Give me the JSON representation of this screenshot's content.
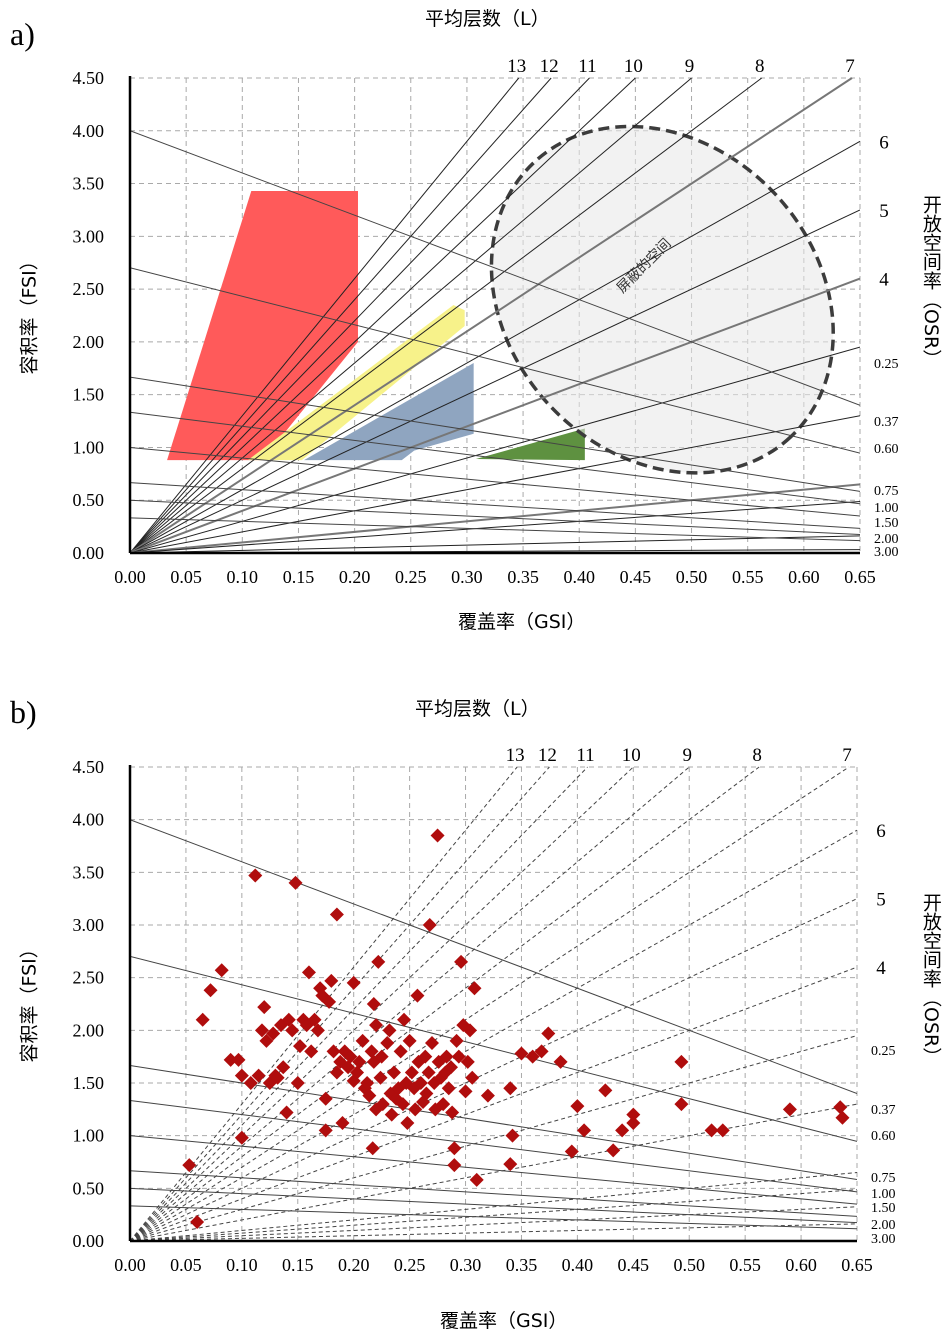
{
  "chart_data": [
    {
      "panel_label": "a)",
      "type": "scatter",
      "top_title": "平均层数（L）",
      "xlabel": "覆盖率（GSI）",
      "ylabel": "容积率（FSI）",
      "right_label": "开放空间率（OSR）",
      "xlim": [
        0,
        0.65
      ],
      "ylim": [
        0,
        4.5
      ],
      "x_ticks": [
        "0.00",
        "0.05",
        "0.10",
        "0.15",
        "0.20",
        "0.25",
        "0.30",
        "0.35",
        "0.40",
        "0.45",
        "0.50",
        "0.55",
        "0.60",
        "0.65"
      ],
      "y_ticks": [
        "0.00",
        "0.50",
        "1.00",
        "1.50",
        "2.00",
        "2.50",
        "3.00",
        "3.50",
        "4.00",
        "4.50"
      ],
      "grid": true,
      "floor_lines": [
        {
          "label": "13",
          "value": 13
        },
        {
          "label": "12",
          "value": 12
        },
        {
          "label": "11",
          "value": 11
        },
        {
          "label": "10",
          "value": 10
        },
        {
          "label": "9",
          "value": 9
        },
        {
          "label": "8",
          "value": 8
        },
        {
          "label": "7",
          "value": 7
        },
        {
          "label": "6",
          "value": 6
        },
        {
          "label": "5",
          "value": 5
        },
        {
          "label": "4",
          "value": 4
        },
        {
          "value": 3
        },
        {
          "value": 2
        },
        {
          "value": 1
        },
        {
          "value": 0.75
        },
        {
          "value": 0.25
        },
        {
          "value": 0.05
        }
      ],
      "osr_lines": [
        {
          "label": "0.25",
          "value": 0.25
        },
        {
          "label": "0.37",
          "value": 0.37
        },
        {
          "label": "0.60",
          "value": 0.6
        },
        {
          "label": "0.75",
          "value": 0.75
        },
        {
          "label": "1.00",
          "value": 1.0
        },
        {
          "label": "1.50",
          "value": 1.5
        },
        {
          "label": "2.00",
          "value": 2.0
        },
        {
          "label": "3.00",
          "value": 3.0
        }
      ],
      "regions": [
        {
          "color": "#ff5a5a",
          "points": [
            [
              0.033,
              0.88
            ],
            [
              0.108,
              3.43
            ],
            [
              0.203,
              3.43
            ],
            [
              0.203,
              2.0
            ],
            [
              0.118,
              0.88
            ]
          ]
        },
        {
          "color": "#f7f28a",
          "points": [
            [
              0.105,
              0.88
            ],
            [
              0.288,
              2.35
            ],
            [
              0.298,
              2.3
            ],
            [
              0.298,
              2.15
            ],
            [
              0.153,
              0.88
            ]
          ]
        },
        {
          "color": "#8fa5c0",
          "points": [
            [
              0.155,
              0.88
            ],
            [
              0.306,
              1.8
            ],
            [
              0.306,
              1.13
            ],
            [
              0.253,
              0.97
            ],
            [
              0.242,
              0.88
            ]
          ]
        },
        {
          "color": "#5e9140",
          "points": [
            [
              0.308,
              0.89
            ],
            [
              0.405,
              1.18
            ],
            [
              0.405,
              0.88
            ]
          ]
        }
      ],
      "ellipse": {
        "cx": 0.474,
        "cy": 2.4,
        "rx_gsi": 0.222,
        "ry_fsi": 0.89,
        "label": "屏蔽的空间"
      }
    },
    {
      "panel_label": "b)",
      "type": "scatter",
      "top_title": "平均层数（L）",
      "xlabel": "覆盖率（GSI）",
      "ylabel": "容积率（FSI）",
      "right_label": "开放空间率（OSR）",
      "xlim": [
        0,
        0.65
      ],
      "ylim": [
        0,
        4.5
      ],
      "x_ticks": [
        "0.00",
        "0.05",
        "0.10",
        "0.15",
        "0.20",
        "0.25",
        "0.30",
        "0.35",
        "0.40",
        "0.45",
        "0.50",
        "0.55",
        "0.60",
        "0.65"
      ],
      "y_ticks": [
        "0.00",
        "0.50",
        "1.00",
        "1.50",
        "2.00",
        "2.50",
        "3.00",
        "3.50",
        "4.00",
        "4.50"
      ],
      "grid": true,
      "floor_lines": [
        {
          "label": "13",
          "value": 13
        },
        {
          "label": "12",
          "value": 12
        },
        {
          "label": "11",
          "value": 11
        },
        {
          "label": "10",
          "value": 10
        },
        {
          "label": "9",
          "value": 9
        },
        {
          "label": "8",
          "value": 8
        },
        {
          "label": "7",
          "value": 7
        },
        {
          "label": "6",
          "value": 6
        },
        {
          "label": "5",
          "value": 5
        },
        {
          "label": "4",
          "value": 4
        },
        {
          "value": 3
        },
        {
          "value": 2
        },
        {
          "value": 1
        },
        {
          "value": 0.75
        },
        {
          "value": 0.5
        },
        {
          "value": 0.25
        }
      ],
      "osr_lines": [
        {
          "label": "0.25",
          "value": 0.25
        },
        {
          "label": "0.37",
          "value": 0.37
        },
        {
          "label": "0.60",
          "value": 0.6
        },
        {
          "label": "0.75",
          "value": 0.75
        },
        {
          "label": "1.00",
          "value": 1.0
        },
        {
          "label": "1.50",
          "value": 1.5
        },
        {
          "label": "2.00",
          "value": 2.0
        },
        {
          "label": "3.00",
          "value": 3.0
        }
      ],
      "marker_color": "#b00d0d",
      "points": [
        [
          0.053,
          0.72
        ],
        [
          0.06,
          0.18
        ],
        [
          0.065,
          2.1
        ],
        [
          0.072,
          2.38
        ],
        [
          0.082,
          2.57
        ],
        [
          0.09,
          1.72
        ],
        [
          0.097,
          1.72
        ],
        [
          0.1,
          0.98
        ],
        [
          0.1,
          1.57
        ],
        [
          0.108,
          1.5
        ],
        [
          0.112,
          3.47
        ],
        [
          0.115,
          1.57
        ],
        [
          0.118,
          2.0
        ],
        [
          0.12,
          2.22
        ],
        [
          0.122,
          1.9
        ],
        [
          0.125,
          1.5
        ],
        [
          0.128,
          1.97
        ],
        [
          0.13,
          1.57
        ],
        [
          0.132,
          1.55
        ],
        [
          0.135,
          2.05
        ],
        [
          0.137,
          1.65
        ],
        [
          0.14,
          1.22
        ],
        [
          0.142,
          2.1
        ],
        [
          0.145,
          2.0
        ],
        [
          0.148,
          3.4
        ],
        [
          0.15,
          1.5
        ],
        [
          0.152,
          1.85
        ],
        [
          0.155,
          2.1
        ],
        [
          0.158,
          2.05
        ],
        [
          0.16,
          2.55
        ],
        [
          0.162,
          1.8
        ],
        [
          0.165,
          2.1
        ],
        [
          0.168,
          2.0
        ],
        [
          0.17,
          2.4
        ],
        [
          0.172,
          2.33
        ],
        [
          0.175,
          1.35
        ],
        [
          0.175,
          1.05
        ],
        [
          0.178,
          2.27
        ],
        [
          0.18,
          2.47
        ],
        [
          0.182,
          1.8
        ],
        [
          0.185,
          3.1
        ],
        [
          0.185,
          1.6
        ],
        [
          0.188,
          1.7
        ],
        [
          0.19,
          1.12
        ],
        [
          0.192,
          1.8
        ],
        [
          0.195,
          1.65
        ],
        [
          0.197,
          1.75
        ],
        [
          0.2,
          2.45
        ],
        [
          0.2,
          1.52
        ],
        [
          0.203,
          1.6
        ],
        [
          0.205,
          1.7
        ],
        [
          0.208,
          1.9
        ],
        [
          0.21,
          1.45
        ],
        [
          0.212,
          1.5
        ],
        [
          0.214,
          1.38
        ],
        [
          0.216,
          1.8
        ],
        [
          0.217,
          0.88
        ],
        [
          0.218,
          2.25
        ],
        [
          0.218,
          1.7
        ],
        [
          0.22,
          1.25
        ],
        [
          0.22,
          2.05
        ],
        [
          0.222,
          2.65
        ],
        [
          0.224,
          1.55
        ],
        [
          0.225,
          1.75
        ],
        [
          0.226,
          1.3
        ],
        [
          0.23,
          1.88
        ],
        [
          0.232,
          2.0
        ],
        [
          0.233,
          1.4
        ],
        [
          0.234,
          1.2
        ],
        [
          0.236,
          1.6
        ],
        [
          0.238,
          1.35
        ],
        [
          0.24,
          1.45
        ],
        [
          0.242,
          1.8
        ],
        [
          0.244,
          1.3
        ],
        [
          0.245,
          2.1
        ],
        [
          0.247,
          1.5
        ],
        [
          0.248,
          1.12
        ],
        [
          0.25,
          1.9
        ],
        [
          0.252,
          1.6
        ],
        [
          0.254,
          1.45
        ],
        [
          0.255,
          1.25
        ],
        [
          0.257,
          2.33
        ],
        [
          0.258,
          1.7
        ],
        [
          0.26,
          1.5
        ],
        [
          0.262,
          1.32
        ],
        [
          0.264,
          1.75
        ],
        [
          0.265,
          1.4
        ],
        [
          0.267,
          1.6
        ],
        [
          0.268,
          3.0
        ],
        [
          0.27,
          1.88
        ],
        [
          0.272,
          1.5
        ],
        [
          0.273,
          1.25
        ],
        [
          0.275,
          3.85
        ],
        [
          0.276,
          1.7
        ],
        [
          0.278,
          1.55
        ],
        [
          0.28,
          1.3
        ],
        [
          0.282,
          1.6
        ],
        [
          0.283,
          1.75
        ],
        [
          0.285,
          1.45
        ],
        [
          0.287,
          1.65
        ],
        [
          0.288,
          1.22
        ],
        [
          0.29,
          0.72
        ],
        [
          0.29,
          0.88
        ],
        [
          0.292,
          1.9
        ],
        [
          0.294,
          1.75
        ],
        [
          0.296,
          2.65
        ],
        [
          0.298,
          2.05
        ],
        [
          0.3,
          1.42
        ],
        [
          0.302,
          1.7
        ],
        [
          0.304,
          2.0
        ],
        [
          0.306,
          1.55
        ],
        [
          0.308,
          2.4
        ],
        [
          0.31,
          0.58
        ],
        [
          0.32,
          1.38
        ],
        [
          0.34,
          0.73
        ],
        [
          0.34,
          1.45
        ],
        [
          0.342,
          1.0
        ],
        [
          0.35,
          1.78
        ],
        [
          0.36,
          1.75
        ],
        [
          0.368,
          1.8
        ],
        [
          0.374,
          1.97
        ],
        [
          0.385,
          1.7
        ],
        [
          0.395,
          0.85
        ],
        [
          0.4,
          1.28
        ],
        [
          0.406,
          1.05
        ],
        [
          0.425,
          1.43
        ],
        [
          0.432,
          0.86
        ],
        [
          0.44,
          1.05
        ],
        [
          0.45,
          1.12
        ],
        [
          0.45,
          1.2
        ],
        [
          0.493,
          1.3
        ],
        [
          0.493,
          1.7
        ],
        [
          0.52,
          1.05
        ],
        [
          0.53,
          1.05
        ],
        [
          0.59,
          1.25
        ],
        [
          0.635,
          1.27
        ],
        [
          0.637,
          1.17
        ]
      ]
    }
  ]
}
